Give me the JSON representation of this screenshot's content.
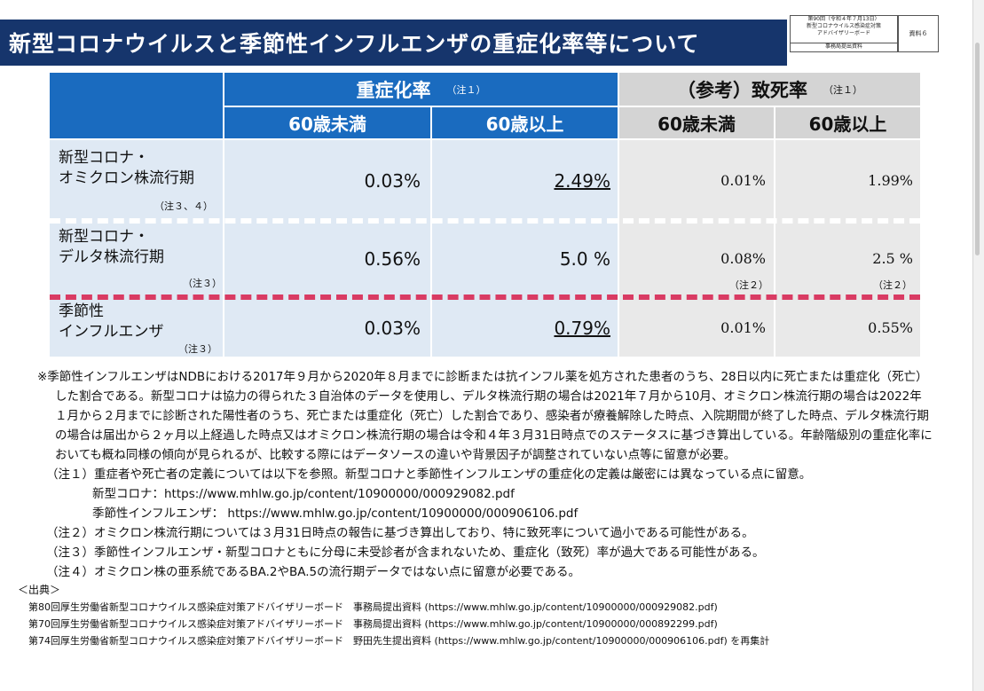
{
  "header": {
    "title": "新型コロナウイルスと季節性インフルエンザの重症化率等について",
    "meta_lines": [
      "第90回（令和４年７月13日）",
      "新型コロナウイルス感染症対策",
      "アドバイザリーボード"
    ],
    "meta_bottom": "事務局提出資料",
    "doc_label": "資料６"
  },
  "table": {
    "group_severity": "重症化率",
    "group_severity_note": "（注１）",
    "group_fatality": "（参考）致死率",
    "group_fatality_note": "（注１）",
    "col_under60": "60歳未満",
    "col_over60": "60歳以上",
    "rows": [
      {
        "label_line1": "新型コロナ・",
        "label_line2": "オミクロン株流行期",
        "note": "（注３、４）",
        "sev_under60": "0.03%",
        "sev_over60": "2.49%",
        "fat_under60": "0.01%",
        "fat_over60": "1.99%",
        "fat_under60_note": "",
        "fat_over60_note": ""
      },
      {
        "label_line1": "新型コロナ・",
        "label_line2": "デルタ株流行期",
        "note": "（注３）",
        "sev_under60": "0.56%",
        "sev_over60": "5.0 %",
        "fat_under60": "0.08%",
        "fat_over60": "2.5 %",
        "fat_under60_note": "（注２）",
        "fat_over60_note": "（注２）"
      },
      {
        "label_line1": "季節性",
        "label_line2": "インフルエンザ",
        "note": "（注３）",
        "sev_under60": "0.03%",
        "sev_over60": "0.79%",
        "fat_under60": "0.01%",
        "fat_over60": "0.55%",
        "fat_under60_note": "",
        "fat_over60_note": ""
      }
    ]
  },
  "notes": {
    "main": "※季節性インフルエンザはNDBにおける2017年９月から2020年８月までに診断または抗インフル薬を処方された患者のうち、28日以内に死亡または重症化（死亡）した割合である。新型コロナは協力の得られた３自治体のデータを使用し、デルタ株流行期の場合は2021年７月から10月、オミクロン株流行期の場合は2022年１月から２月までに診断された陽性者のうち、死亡または重症化（死亡）した割合であり、感染者が療養解除した時点、入院期間が終了した時点、デルタ株流行期の場合は届出から２ヶ月以上経過した時点又はオミクロン株流行期の場合は令和４年３月31日時点でのステータスに基づき算出している。年齢階級別の重症化率においても概ね同様の傾向が見られるが、比較する際にはデータソースの違いや背景因子が調整されていない点等に留意が必要。",
    "note1": "（注１）重症者や死亡者の定義については以下を参照。新型コロナと季節性インフルエンザの重症化の定義は厳密には異なっている点に留意。",
    "note1_link1": "新型コロナ：https://www.mhlw.go.jp/content/10900000/000929082.pdf",
    "note1_link2": "季節性インフルエンザ： https://www.mhlw.go.jp/content/10900000/000906106.pdf",
    "note2": "（注２）オミクロン株流行期については３月31日時点の報告に基づき算出しており、特に致死率について過小である可能性がある。",
    "note3": "（注３）季節性インフルエンザ・新型コロナともに分母に未受診者が含まれないため、重症化（致死）率が過大である可能性がある。",
    "note4": "（注４）オミクロン株の亜系統であるBA.2やBA.5の流行期データではない点に留意が必要である。",
    "source_heading": "＜出典＞",
    "sources": [
      "第80回厚生労働省新型コロナウイルス感染症対策アドバイザリーボード　事務局提出資料 (https://www.mhlw.go.jp/content/10900000/000929082.pdf)",
      "第70回厚生労働省新型コロナウイルス感染症対策アドバイザリーボード　事務局提出資料 (https://www.mhlw.go.jp/content/10900000/000892299.pdf)",
      "第74回厚生労働省新型コロナウイルス感染症対策アドバイザリーボード　野田先生提出資料 (https://www.mhlw.go.jp/content/10900000/000906106.pdf) を再集計"
    ]
  },
  "colors": {
    "header_bg": "#16356c",
    "blue_header": "#1a6bbf",
    "blue_body": "#dfe9f4",
    "gray_header": "#d4d4d4",
    "gray_body": "#e9e9e9",
    "dash_red": "#d93b63"
  }
}
